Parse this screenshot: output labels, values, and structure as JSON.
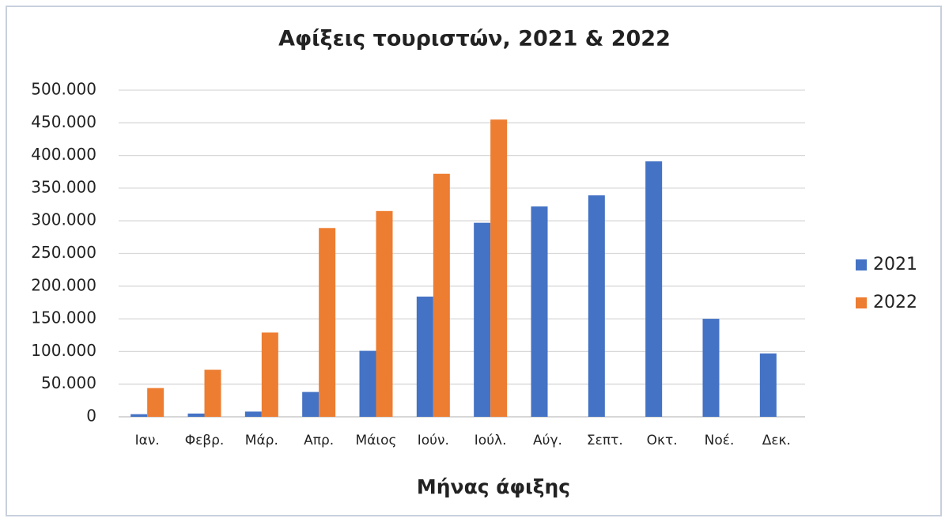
{
  "chart_data": {
    "type": "bar",
    "title": "Αφίξεις τουριστών, 2021 & 2022",
    "x_label": "Μήνας άφιξης",
    "categories": [
      "Ιαν.",
      "Φεβρ.",
      "Μάρ.",
      "Απρ.",
      "Μάιος",
      "Ιούν.",
      "Ιούλ.",
      "Αύγ.",
      "Σεπτ.",
      "Οκτ.",
      "Νοέ.",
      "Δεκ."
    ],
    "series": [
      {
        "name": "2021",
        "color": "#4472c4",
        "values": [
          4000,
          5000,
          8000,
          38000,
          101000,
          184000,
          297000,
          322000,
          339000,
          391000,
          150000,
          97000
        ]
      },
      {
        "name": "2022",
        "color": "#ed7d31",
        "values": [
          44000,
          72000,
          129000,
          289000,
          315000,
          372000,
          455000,
          null,
          null,
          null,
          null,
          null
        ]
      }
    ],
    "ylim": [
      0,
      500000
    ],
    "yticks": [
      0,
      {
        "value": 50000,
        "label": "50.000"
      },
      {
        "value": 100000,
        "label": "100.000"
      },
      {
        "value": 150000,
        "label": "150.000"
      },
      {
        "value": 200000,
        "label": "200.000"
      },
      {
        "value": 250000,
        "label": "250.000"
      },
      {
        "value": 300000,
        "label": "300.000"
      },
      {
        "value": 350000,
        "label": "350.000"
      },
      {
        "value": 400000,
        "label": "400.000"
      },
      {
        "value": 450000,
        "label": "450.000"
      },
      {
        "value": 500000,
        "label": "500.000"
      }
    ],
    "grid": true,
    "legend": "right"
  }
}
